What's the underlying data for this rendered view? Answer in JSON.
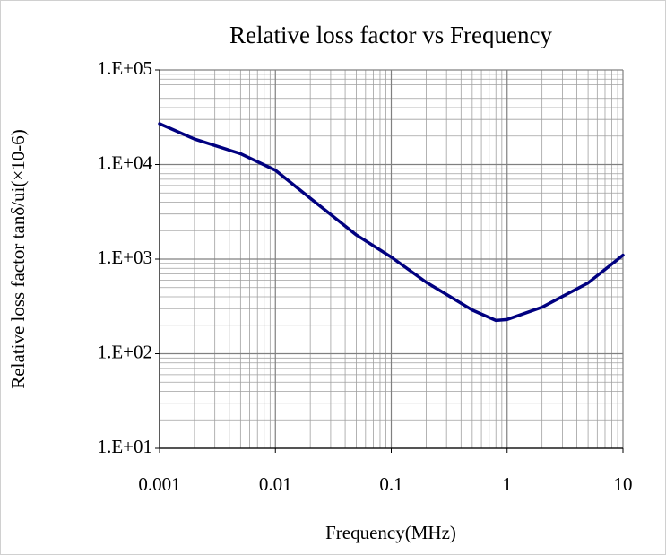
{
  "chart_data": {
    "type": "line",
    "title": "Relative loss factor vs Frequency",
    "xlabel": "Frequency(MHz)",
    "ylabel": "Relative loss factor tanδ/ui(×10-6)",
    "x": [
      0.001,
      0.002,
      0.005,
      0.01,
      0.02,
      0.05,
      0.1,
      0.2,
      0.5,
      0.8,
      1,
      2,
      5,
      10
    ],
    "series": [
      {
        "name": "Relative loss factor",
        "color": "#000080",
        "values": [
          27000,
          18600,
          13000,
          8700,
          4400,
          1800,
          1050,
          570,
          290,
          225,
          230,
          310,
          560,
          1100
        ]
      }
    ],
    "xlim": [
      0.001,
      10
    ],
    "ylim": [
      10,
      100000
    ],
    "xticks": [
      0.001,
      0.01,
      0.1,
      1,
      10
    ],
    "yticks": [
      {
        "value": 10,
        "label": "1.E+01"
      },
      {
        "value": 100,
        "label": "1.E+02"
      },
      {
        "value": 1000,
        "label": "1.E+03"
      },
      {
        "value": 10000,
        "label": "1.E+04"
      },
      {
        "value": 100000,
        "label": "1.E+05"
      }
    ],
    "xscale": "log",
    "yscale": "log",
    "grid": true,
    "minor_grid": true
  }
}
